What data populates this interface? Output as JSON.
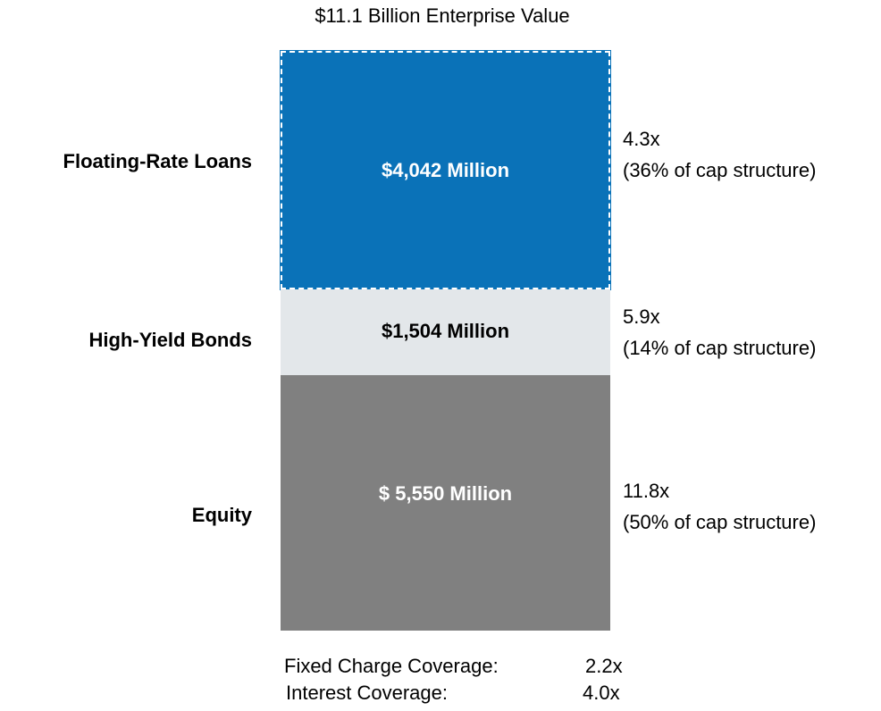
{
  "title": "$11.1 Billion Enterprise Value",
  "segments": [
    {
      "label": "Floating-Rate Loans",
      "amount": "$4,042 Million",
      "multiple": "4.3x",
      "share": "(36% of cap structure)"
    },
    {
      "label": "High-Yield Bonds",
      "amount": "$1,504 Million",
      "multiple": "5.9x",
      "share": "(14% of cap structure)"
    },
    {
      "label": "Equity",
      "amount": "$ 5,550 Million",
      "multiple": "11.8x",
      "share": "(50% of cap structure)"
    }
  ],
  "coverage": [
    {
      "label": "Fixed Charge Coverage:",
      "value": "2.2x"
    },
    {
      "label": "Interest Coverage:",
      "value": "4.0x"
    }
  ]
}
